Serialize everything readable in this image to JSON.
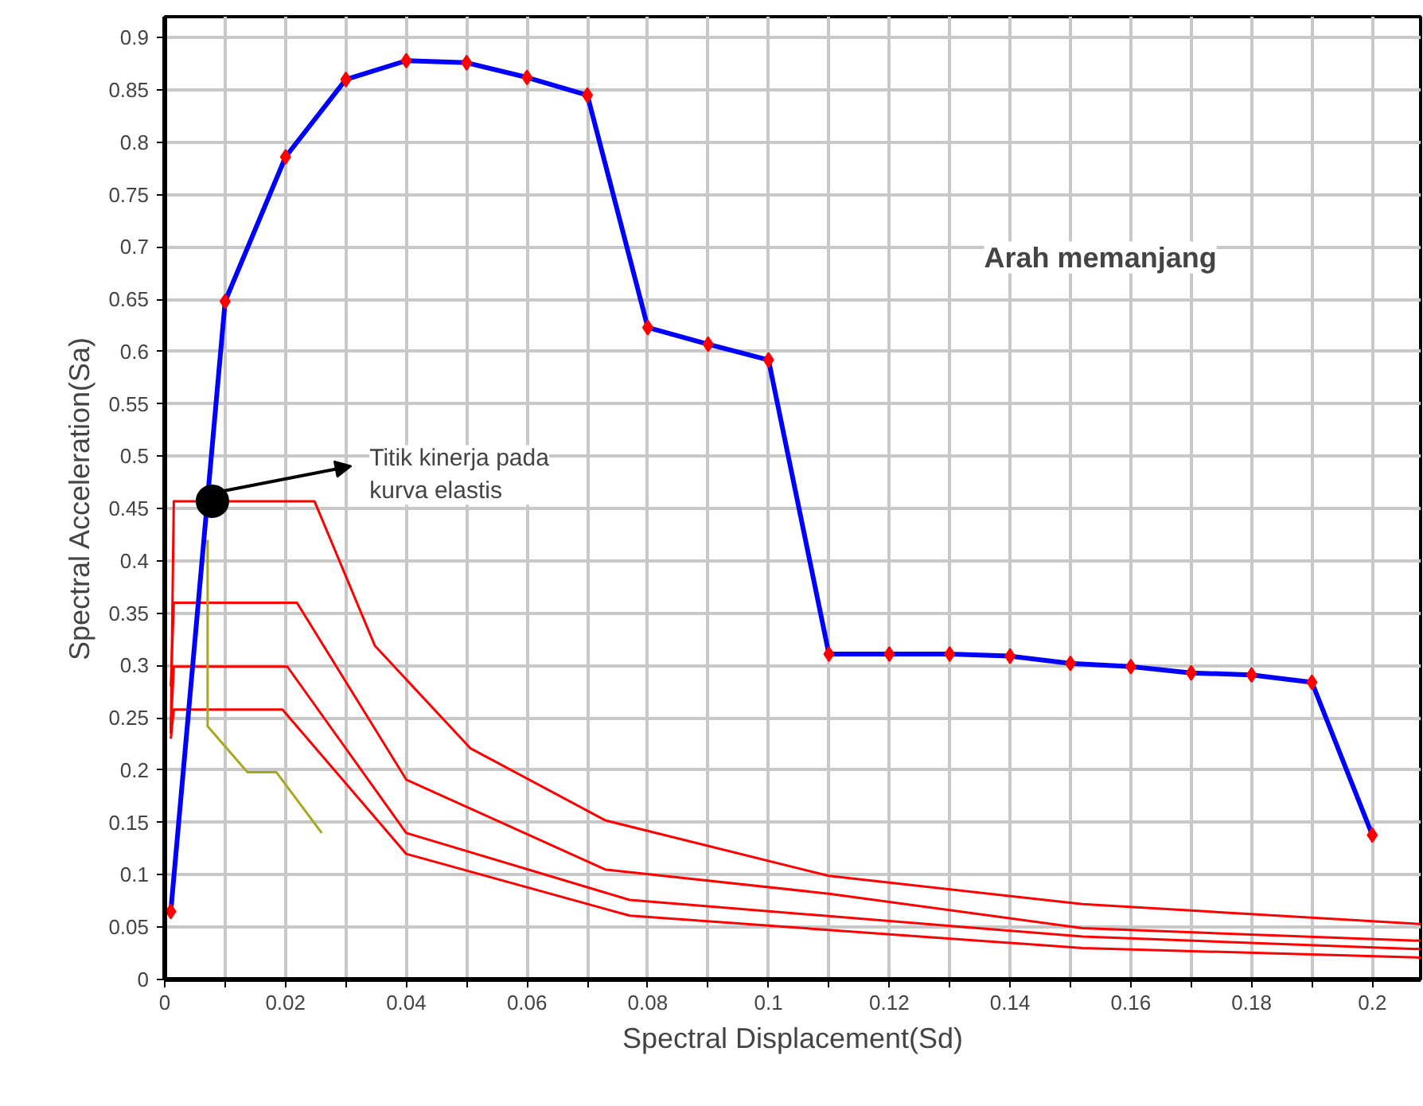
{
  "chart_data": {
    "type": "line",
    "xlabel": "Spectral Displacement(Sd)",
    "ylabel": "Spectral Acceleration(Sa)",
    "xlim": [
      0,
      0.208
    ],
    "ylim": [
      0,
      0.92
    ],
    "xticks": [
      0,
      {
        "value": 0.01,
        "label": null
      },
      0.02,
      {
        "value": 0.03,
        "label": null
      },
      0.04,
      {
        "value": 0.05,
        "label": null
      },
      0.06,
      {
        "value": 0.07,
        "label": null
      },
      0.08,
      {
        "value": 0.09,
        "label": null
      },
      0.1,
      {
        "value": 0.11,
        "label": null
      },
      0.12,
      {
        "value": 0.13,
        "label": null
      },
      0.14,
      {
        "value": 0.15,
        "label": null
      },
      0.16,
      {
        "value": 0.17,
        "label": null
      },
      0.18,
      {
        "value": 0.19,
        "label": null
      },
      0.2
    ],
    "yticks": [
      0,
      0.05,
      0.1,
      0.15,
      0.2,
      0.25,
      0.3,
      0.35,
      0.4,
      0.45,
      0.5,
      0.55,
      0.6,
      0.65,
      0.7,
      0.75,
      0.8,
      0.85,
      0.9
    ],
    "grid": true,
    "line_style": "solid",
    "series": [
      {
        "color": "#ff0000",
        "marker": "none",
        "x": [
          0.001,
          0.0015,
          0.0248,
          0.0348,
          0.0506,
          0.073,
          0.11,
          0.152,
          0.208
        ],
        "values": [
          0.235,
          0.457,
          0.457,
          0.319,
          0.221,
          0.152,
          0.099,
          0.072,
          0.053
        ]
      },
      {
        "color": "#ff0000",
        "marker": "none",
        "x": [
          0.001,
          0.0015,
          0.0219,
          0.04,
          0.073,
          0.11,
          0.152,
          0.208
        ],
        "values": [
          0.28,
          0.36,
          0.36,
          0.191,
          0.105,
          0.082,
          0.049,
          0.037
        ]
      },
      {
        "color": "#ff0000",
        "marker": "none",
        "x": [
          0.001,
          0.0015,
          0.0203,
          0.04,
          0.077,
          0.152,
          0.208
        ],
        "values": [
          0.24,
          0.299,
          0.299,
          0.14,
          0.076,
          0.041,
          0.029
        ]
      },
      {
        "color": "#ff0000",
        "marker": "none",
        "x": [
          0.001,
          0.0015,
          0.0195,
          0.04,
          0.077,
          0.152,
          0.208
        ],
        "values": [
          0.23,
          0.258,
          0.258,
          0.12,
          0.061,
          0.03,
          0.021
        ]
      },
      {
        "color": "#a8a820",
        "marker": "none",
        "x": [
          0.0071,
          0.0071,
          0.0137,
          0.0185,
          0.026
        ],
        "values": [
          0.42,
          0.242,
          0.198,
          0.198,
          0.14
        ]
      },
      {
        "color": "#0000ff",
        "marker": "none",
        "x": [
          0.001,
          0.01,
          0.02,
          0.03,
          0.04,
          0.05,
          0.06,
          0.07,
          0.08,
          0.09,
          0.1,
          0.11,
          0.12,
          0.13,
          0.14,
          0.15,
          0.16,
          0.17,
          0.18,
          0.19,
          0.2
        ],
        "values": [
          0.065,
          0.648,
          0.786,
          0.86,
          0.878,
          0.876,
          0.862,
          0.845,
          0.623,
          0.607,
          0.592,
          0.311,
          0.311,
          0.311,
          0.309,
          0.302,
          0.299,
          0.293,
          0.291,
          0.284,
          0.138
        ]
      },
      {
        "type": "scatter",
        "color": "#ff0000",
        "marker": "diamond",
        "x": [
          0.001,
          0.01,
          0.02,
          0.03,
          0.04,
          0.05,
          0.06,
          0.07,
          0.08,
          0.09,
          0.1,
          0.11,
          0.12,
          0.13,
          0.14,
          0.15,
          0.16,
          0.17,
          0.18,
          0.19,
          0.2
        ],
        "values": [
          0.065,
          0.648,
          0.786,
          0.86,
          0.878,
          0.876,
          0.862,
          0.845,
          0.623,
          0.607,
          0.592,
          0.311,
          0.311,
          0.311,
          0.309,
          0.302,
          0.299,
          0.293,
          0.291,
          0.284,
          0.138
        ]
      },
      {
        "type": "scatter",
        "color": "#000000",
        "marker": "circle",
        "x": [
          0.0079
        ],
        "values": [
          0.457
        ]
      }
    ],
    "annotations": [
      "Titik kinerja pada kurva elastis",
      "Arah memanjang"
    ]
  }
}
